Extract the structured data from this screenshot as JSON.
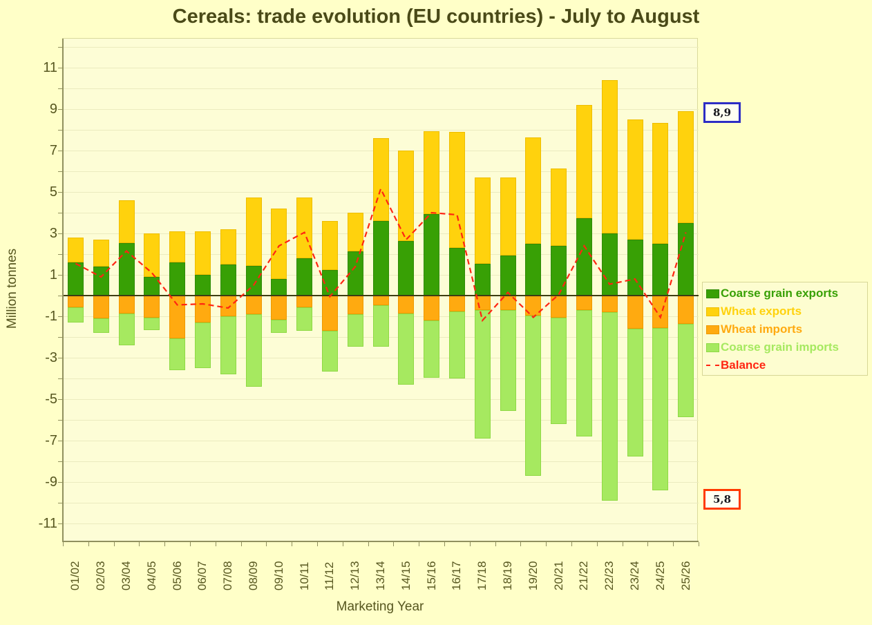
{
  "title": "Cereals: trade evolution (EU countries) - July to August",
  "axes": {
    "y_label": "Million tonnes",
    "x_label": "Marketing Year",
    "y_tick_labels": [
      11,
      9,
      7,
      5,
      3,
      1,
      -1,
      -3,
      -5,
      -7,
      -9,
      -11
    ],
    "ylim": [
      -11.9,
      12.4
    ],
    "grid_step": 1
  },
  "chart_data": {
    "type": "bar",
    "subtype": "stacked-bar-with-line",
    "title": "Cereals: trade evolution (EU countries) - July to August",
    "xlabel": "Marketing Year",
    "ylabel": "Million tonnes",
    "ylim": [
      -11.9,
      12.4
    ],
    "grid": true,
    "legend_position": "right",
    "categories": [
      "01/02",
      "02/03",
      "03/04",
      "04/05",
      "05/06",
      "06/07",
      "07/08",
      "08/09",
      "09/10",
      "10/11",
      "11/12",
      "12/13",
      "13/14",
      "14/15",
      "15/16",
      "16/17",
      "17/18",
      "18/19",
      "19/20",
      "20/21",
      "21/22",
      "22/23",
      "23/24",
      "24/25",
      "25/26"
    ],
    "series": [
      {
        "name": "Coarse grain exports",
        "type": "bar",
        "color": "#38a005",
        "values": [
          1.6,
          1.4,
          2.55,
          0.9,
          1.6,
          1.0,
          1.5,
          1.45,
          0.8,
          1.8,
          1.25,
          2.15,
          3.6,
          2.65,
          3.95,
          2.3,
          1.55,
          1.95,
          2.5,
          2.4,
          3.75,
          3.0,
          2.7,
          2.5,
          3.5
        ]
      },
      {
        "name": "Wheat exports",
        "type": "bar",
        "color": "#ffd20d",
        "values": [
          1.2,
          1.3,
          2.05,
          2.1,
          1.5,
          2.1,
          1.7,
          3.3,
          3.4,
          2.95,
          2.35,
          1.85,
          4.0,
          4.35,
          4.0,
          5.6,
          4.15,
          3.75,
          5.15,
          3.75,
          5.45,
          7.4,
          5.8,
          5.85,
          5.4
        ]
      },
      {
        "name": "Wheat imports",
        "type": "bar",
        "color": "#ffaa10",
        "values": [
          -0.55,
          -1.1,
          -0.85,
          -1.05,
          -2.05,
          -1.3,
          -1.0,
          -0.9,
          -1.15,
          -0.55,
          -1.7,
          -0.9,
          -0.45,
          -0.85,
          -1.2,
          -0.75,
          -0.7,
          -0.7,
          -0.95,
          -1.05,
          -0.7,
          -0.8,
          -1.6,
          -1.55,
          -1.35
        ]
      },
      {
        "name": "Coarse grain imports",
        "type": "bar",
        "color": "#a6e960",
        "values": [
          -0.75,
          -0.7,
          -1.55,
          -0.6,
          -1.55,
          -2.2,
          -2.8,
          -3.5,
          -0.65,
          -1.15,
          -1.95,
          -1.55,
          -2.0,
          -3.45,
          -2.75,
          -3.25,
          -6.2,
          -4.85,
          -7.75,
          -5.15,
          -6.1,
          -9.1,
          -6.15,
          -7.85,
          -4.5
        ]
      },
      {
        "name": "Balance",
        "type": "line",
        "color": "#ff2512",
        "dashed": true,
        "values": [
          1.55,
          0.9,
          2.15,
          1.1,
          -0.45,
          -0.4,
          -0.6,
          0.5,
          2.4,
          3.05,
          -0.05,
          1.4,
          5.15,
          2.7,
          4.0,
          3.9,
          -1.2,
          0.15,
          -1.05,
          0.05,
          2.4,
          0.55,
          0.8,
          -1.05,
          3.05
        ]
      }
    ]
  },
  "annotations": [
    {
      "text": "8,9",
      "meaning": "total exports 25/26",
      "border_color": "#2d2dc4"
    },
    {
      "text": "5,8",
      "meaning": "total imports 25/26",
      "border_color": "#ff3a00"
    }
  ],
  "colors": {
    "page_bg": "#ffffc8",
    "plot_bg": "#fdfdd6",
    "text": "#56561f",
    "zero_line": "#3d3d12",
    "gridline": "#ebebbf"
  }
}
